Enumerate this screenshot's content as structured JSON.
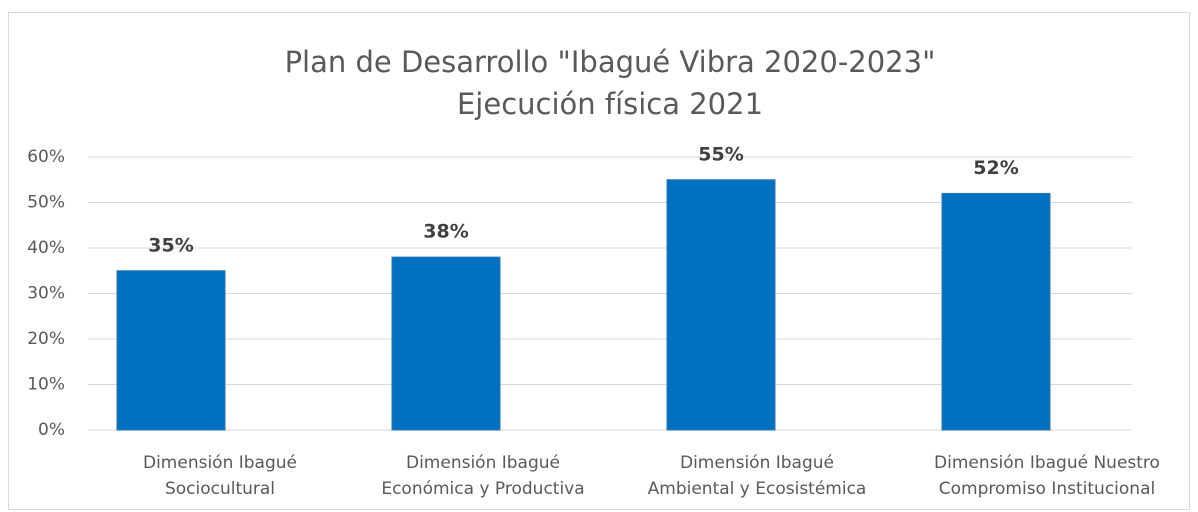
{
  "chart_data": {
    "type": "bar",
    "title": [
      "Plan de Desarrollo \"Ibagué Vibra 2020-2023\"",
      "Ejecución física 2021"
    ],
    "categories": [
      "Dimensión Ibagué\nSociocultural",
      "Dimensión Ibagué\nEconómica y Productiva",
      "Dimensión Ibagué\nAmbiental y Ecosistémica",
      "Dimensión Ibagué Nuestro\nCompromiso Institucional"
    ],
    "values": [
      35,
      38,
      55,
      52
    ],
    "value_labels": [
      "35%",
      "38%",
      "55%",
      "52%"
    ],
    "color": "#0070c0",
    "ylim": [
      0,
      60
    ],
    "yticks": [
      {
        "value": 0,
        "label": "0%"
      },
      {
        "value": 10,
        "label": "10%"
      },
      {
        "value": 20,
        "label": "20%"
      },
      {
        "value": 30,
        "label": "30%"
      },
      {
        "value": 40,
        "label": "40%"
      },
      {
        "value": 50,
        "label": "50%"
      },
      {
        "value": 60,
        "label": "60%"
      }
    ],
    "grid": true
  }
}
